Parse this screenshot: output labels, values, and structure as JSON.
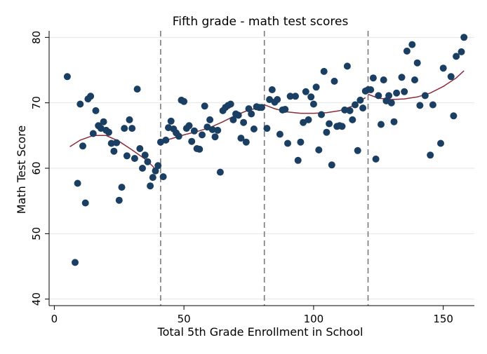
{
  "chart_data": {
    "type": "scatter",
    "title": "Fifth grade - math test scores",
    "xlabel": "Total 5th Grade Enrollment in School",
    "ylabel": "Math Test Score",
    "xlim": [
      -2,
      162
    ],
    "ylim": [
      39,
      81
    ],
    "x_ticks": [
      0,
      50,
      100,
      150
    ],
    "y_ticks": [
      40,
      50,
      60,
      70,
      80
    ],
    "grid": true,
    "legend": "none",
    "vertical_lines": [
      41,
      81,
      121
    ],
    "colors": {
      "points": "#1b3f63",
      "fit_line": "#8b2b3d",
      "reference_lines": "#7a7a7a",
      "grid": "#e6e6e6"
    },
    "series": [
      {
        "type": "scatter",
        "points": [
          [
            5,
            74.0
          ],
          [
            8,
            45.6
          ],
          [
            9,
            57.7
          ],
          [
            10,
            69.8
          ],
          [
            11,
            63.4
          ],
          [
            12,
            54.7
          ],
          [
            13,
            70.6
          ],
          [
            14,
            71.0
          ],
          [
            15,
            65.3
          ],
          [
            16,
            68.8
          ],
          [
            17,
            66.5
          ],
          [
            18,
            66.1
          ],
          [
            19,
            67.1
          ],
          [
            20,
            65.8
          ],
          [
            21,
            65.5
          ],
          [
            22,
            63.8
          ],
          [
            23,
            62.6
          ],
          [
            24,
            63.9
          ],
          [
            25,
            55.1
          ],
          [
            26,
            57.1
          ],
          [
            27,
            66.1
          ],
          [
            28,
            61.9
          ],
          [
            29,
            67.4
          ],
          [
            30,
            66.1
          ],
          [
            31,
            61.5
          ],
          [
            32,
            72.1
          ],
          [
            33,
            63.0
          ],
          [
            34,
            60.0
          ],
          [
            35,
            62.0
          ],
          [
            36,
            61.0
          ],
          [
            37,
            57.3
          ],
          [
            38,
            58.6
          ],
          [
            39,
            59.6
          ],
          [
            40,
            60.4
          ],
          [
            41,
            64.0
          ],
          [
            42,
            58.7
          ],
          [
            43,
            64.3
          ],
          [
            44,
            66.2
          ],
          [
            45,
            67.2
          ],
          [
            46,
            66.0
          ],
          [
            47,
            65.4
          ],
          [
            48,
            64.9
          ],
          [
            49,
            70.4
          ],
          [
            50,
            70.2
          ],
          [
            51,
            66.1
          ],
          [
            52,
            66.5
          ],
          [
            53,
            64.1
          ],
          [
            54,
            65.7
          ],
          [
            55,
            63.0
          ],
          [
            56,
            62.9
          ],
          [
            57,
            65.1
          ],
          [
            58,
            69.5
          ],
          [
            59,
            66.3
          ],
          [
            60,
            67.4
          ],
          [
            61,
            65.9
          ],
          [
            62,
            64.8
          ],
          [
            63,
            65.8
          ],
          [
            64,
            59.4
          ],
          [
            65,
            68.8
          ],
          [
            66,
            69.3
          ],
          [
            67,
            69.6
          ],
          [
            68,
            69.8
          ],
          [
            69,
            67.4
          ],
          [
            70,
            68.3
          ],
          [
            71,
            68.1
          ],
          [
            72,
            64.6
          ],
          [
            73,
            67.0
          ],
          [
            74,
            64.0
          ],
          [
            75,
            69.1
          ],
          [
            76,
            68.3
          ],
          [
            77,
            66.0
          ],
          [
            78,
            69.4
          ],
          [
            79,
            69.3
          ],
          [
            80,
            69.3
          ],
          [
            82,
            66.1
          ],
          [
            83,
            70.5
          ],
          [
            84,
            72.0
          ],
          [
            85,
            70.1
          ],
          [
            86,
            70.5
          ],
          [
            87,
            65.2
          ],
          [
            88,
            68.9
          ],
          [
            89,
            69.0
          ],
          [
            90,
            63.8
          ],
          [
            91,
            71.0
          ],
          [
            93,
            71.0
          ],
          [
            94,
            61.2
          ],
          [
            95,
            64.0
          ],
          [
            96,
            67.0
          ],
          [
            97,
            71.7
          ],
          [
            98,
            67.4
          ],
          [
            99,
            70.9
          ],
          [
            100,
            69.8
          ],
          [
            101,
            72.4
          ],
          [
            102,
            62.8
          ],
          [
            103,
            68.2
          ],
          [
            104,
            74.8
          ],
          [
            105,
            65.5
          ],
          [
            106,
            66.8
          ],
          [
            107,
            60.5
          ],
          [
            108,
            73.3
          ],
          [
            109,
            66.4
          ],
          [
            110,
            66.5
          ],
          [
            111,
            66.4
          ],
          [
            112,
            68.9
          ],
          [
            113,
            75.6
          ],
          [
            114,
            68.8
          ],
          [
            115,
            67.4
          ],
          [
            116,
            69.7
          ],
          [
            117,
            62.7
          ],
          [
            118,
            70.4
          ],
          [
            119,
            69.2
          ],
          [
            120,
            71.8
          ],
          [
            121,
            72.0
          ],
          [
            122,
            72.0
          ],
          [
            123,
            73.8
          ],
          [
            124,
            61.4
          ],
          [
            125,
            71.1
          ],
          [
            126,
            66.7
          ],
          [
            127,
            73.5
          ],
          [
            128,
            70.3
          ],
          [
            129,
            71.1
          ],
          [
            130,
            70.0
          ],
          [
            131,
            67.1
          ],
          [
            132,
            71.5
          ],
          [
            134,
            73.9
          ],
          [
            135,
            71.7
          ],
          [
            136,
            77.9
          ],
          [
            138,
            78.9
          ],
          [
            139,
            73.5
          ],
          [
            140,
            76.1
          ],
          [
            141,
            69.6
          ],
          [
            143,
            71.1
          ],
          [
            145,
            62.0
          ],
          [
            146,
            69.7
          ],
          [
            149,
            63.8
          ],
          [
            150,
            75.3
          ],
          [
            153,
            74.0
          ],
          [
            154,
            68.0
          ],
          [
            155,
            77.1
          ],
          [
            157,
            77.8
          ],
          [
            158,
            80.0
          ]
        ]
      },
      {
        "type": "line",
        "segments": [
          [
            [
              6,
              63.3
            ],
            [
              10,
              64.3
            ],
            [
              15,
              65.0
            ],
            [
              20,
              65.0
            ],
            [
              25,
              64.1
            ],
            [
              30,
              62.8
            ],
            [
              35,
              61.4
            ],
            [
              38,
              60.3
            ],
            [
              40,
              59.2
            ]
          ],
          [
            [
              41,
              64.1
            ],
            [
              45,
              64.5
            ],
            [
              50,
              65.1
            ],
            [
              55,
              65.6
            ],
            [
              60,
              66.2
            ],
            [
              65,
              67.1
            ],
            [
              70,
              68.1
            ],
            [
              75,
              68.9
            ],
            [
              80,
              69.3
            ]
          ],
          [
            [
              81,
              69.7
            ],
            [
              85,
              69.1
            ],
            [
              90,
              68.6
            ],
            [
              95,
              68.4
            ],
            [
              100,
              68.4
            ],
            [
              105,
              68.5
            ],
            [
              110,
              68.8
            ],
            [
              115,
              69.5
            ],
            [
              120,
              70.8
            ]
          ],
          [
            [
              121,
              71.3
            ],
            [
              125,
              70.7
            ],
            [
              130,
              70.5
            ],
            [
              135,
              70.6
            ],
            [
              140,
              70.9
            ],
            [
              145,
              71.5
            ],
            [
              150,
              72.5
            ],
            [
              155,
              73.8
            ],
            [
              158,
              74.9
            ]
          ]
        ]
      }
    ]
  }
}
